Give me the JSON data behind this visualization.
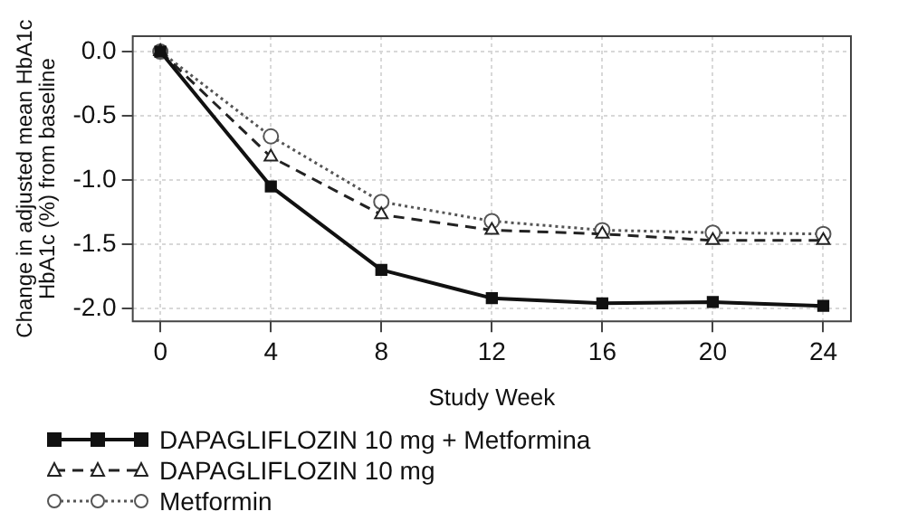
{
  "chart_data": {
    "type": "line",
    "xlabel": "Study Week",
    "ylabel": "Change in adjusted mean HbA1c\nHbA1c (%) from baseline",
    "x": [
      0,
      4,
      8,
      12,
      16,
      20,
      24
    ],
    "xlim": [
      -1,
      25
    ],
    "xticks": [
      0,
      4,
      8,
      12,
      16,
      20,
      24
    ],
    "ylim": [
      -2.1,
      0.12
    ],
    "yticks": [
      {
        "value": 0,
        "label": "0.0"
      },
      {
        "value": -0.5,
        "label": "-0.5"
      },
      {
        "value": -1,
        "label": "-1.0"
      },
      {
        "value": -1.5,
        "label": "-1.5"
      },
      {
        "value": -2,
        "label": "-2.0"
      }
    ],
    "grid": true,
    "legend": "bottom",
    "series": [
      {
        "name": "DAPAGLIFLOZIN 10 mg + Metformina",
        "color": "#111111",
        "marker": "square",
        "line_style": "solid",
        "values": [
          0,
          -1.05,
          -1.7,
          -1.92,
          -1.96,
          -1.95,
          -1.98
        ]
      },
      {
        "name": "DAPAGLIFLOZIN 10 mg",
        "color": "#222222",
        "marker": "triangle",
        "line_style": "dashed",
        "values": [
          0,
          -0.82,
          -1.27,
          -1.39,
          -1.42,
          -1.47,
          -1.47
        ]
      },
      {
        "name": "Metformin",
        "color": "#555555",
        "marker": "circle",
        "line_style": "dotted",
        "values": [
          0,
          -0.66,
          -1.17,
          -1.32,
          -1.39,
          -1.41,
          -1.42
        ]
      }
    ]
  }
}
